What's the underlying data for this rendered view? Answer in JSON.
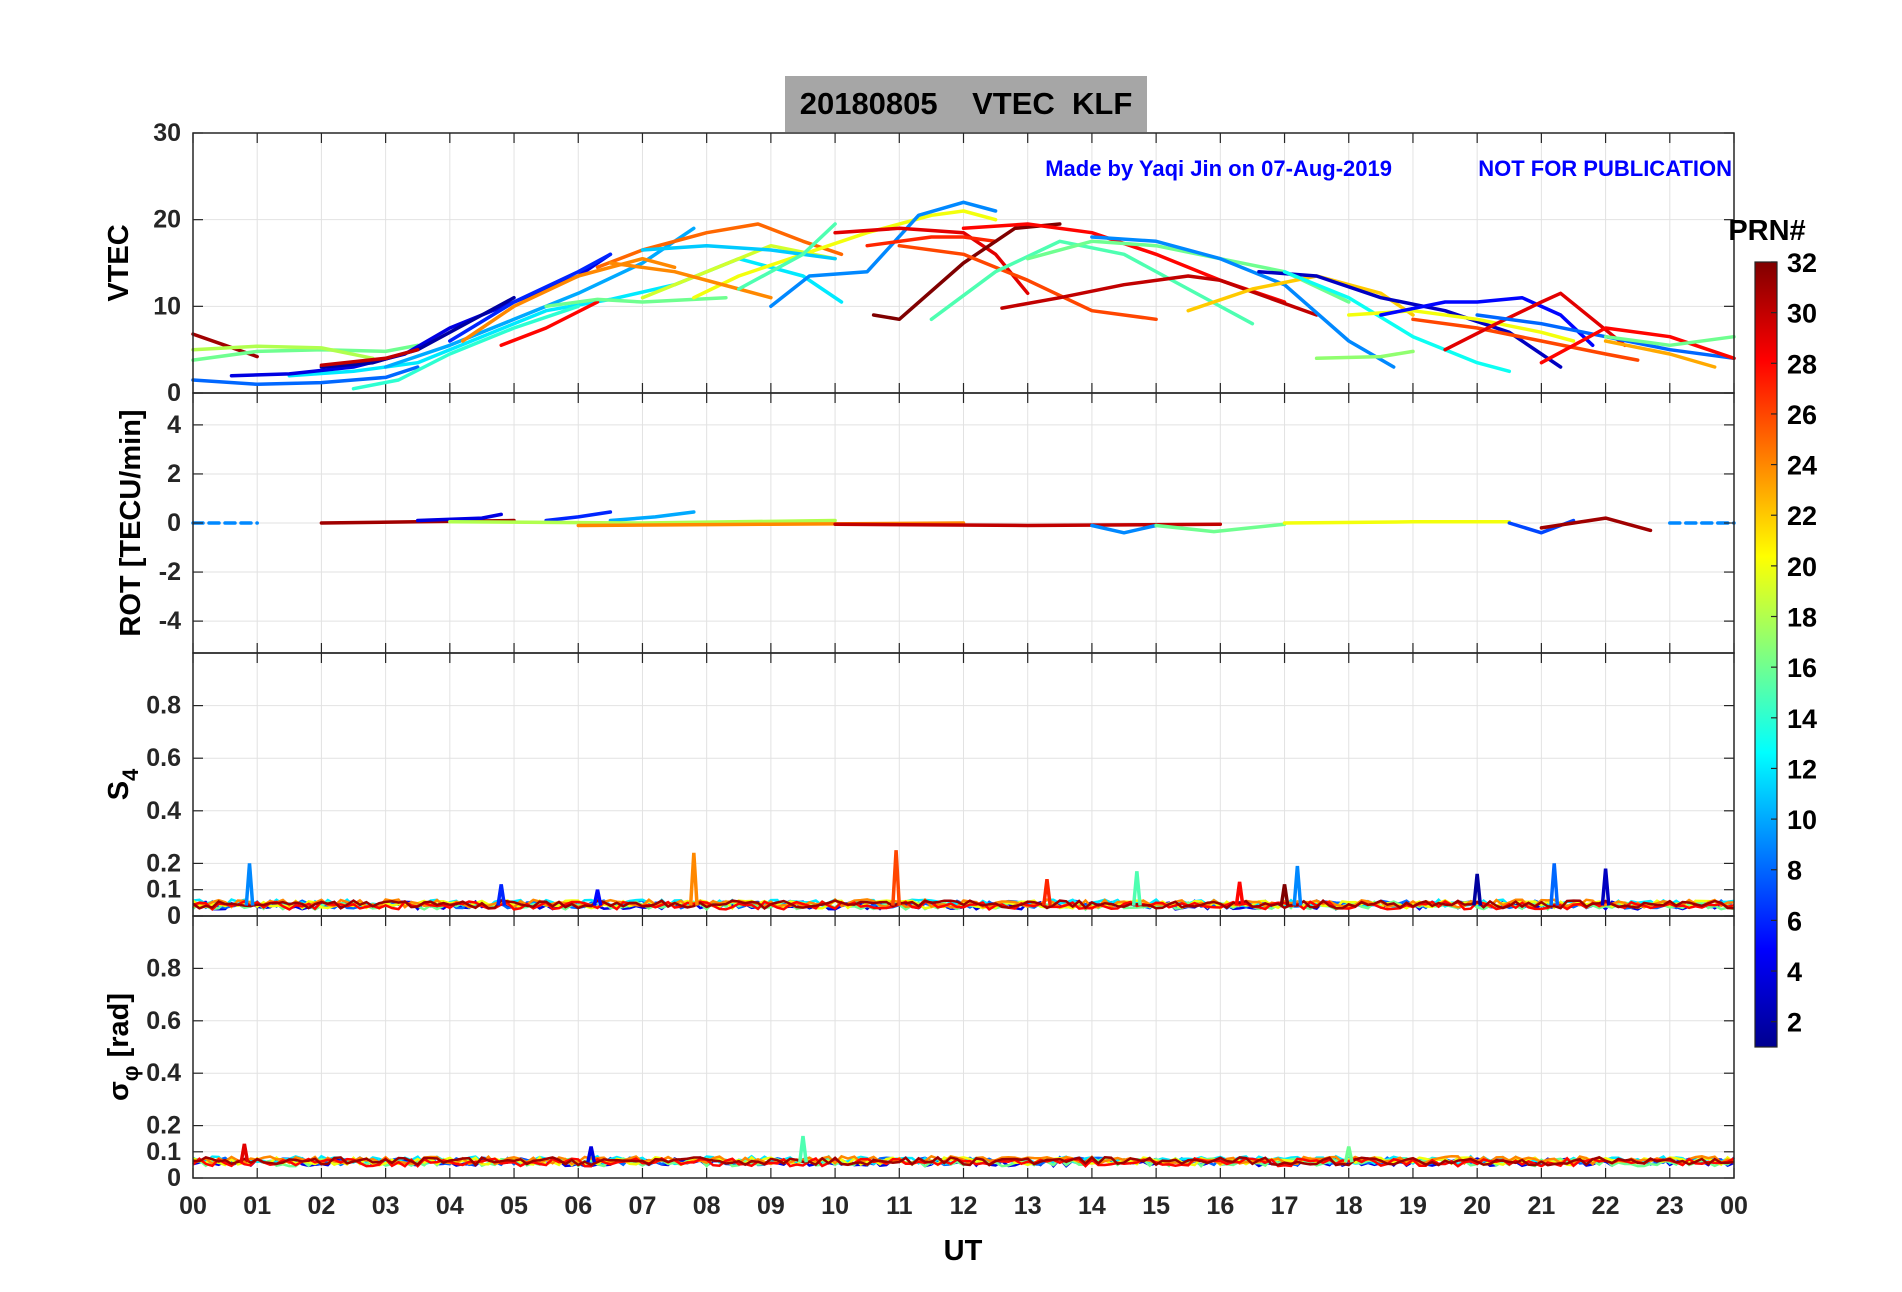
{
  "figure": {
    "title": "20180805    VTEC  KLF",
    "credit": "Made by Yaqi Jin on 07-Aug-2019",
    "notice": "NOT FOR PUBLICATION",
    "xlabel": "UT",
    "colorbar": {
      "label": "PRN#",
      "ticks": [
        "2",
        "4",
        "6",
        "8",
        "10",
        "12",
        "14",
        "16",
        "18",
        "20",
        "22",
        "24",
        "26",
        "28",
        "30",
        "32"
      ]
    },
    "colors": {
      "title_bg": "#a6a6a6",
      "annotation": "#0000ff",
      "grid": "#e2e2e2"
    }
  },
  "chart_data": [
    {
      "type": "line",
      "panel": "VTEC",
      "ylabel": "VTEC",
      "ylim": [
        0,
        30
      ],
      "yticks": [
        0,
        10,
        20,
        30
      ],
      "xlim": [
        0,
        24
      ],
      "xticks": [
        "00",
        "01",
        "02",
        "03",
        "04",
        "05",
        "06",
        "07",
        "08",
        "09",
        "10",
        "11",
        "12",
        "13",
        "14",
        "15",
        "16",
        "17",
        "18",
        "19",
        "20",
        "21",
        "22",
        "23",
        "00"
      ],
      "series": [
        {
          "prn": 31,
          "x": [
            0,
            0.5,
            1.0
          ],
          "y": [
            6.8,
            5.5,
            4.2
          ]
        },
        {
          "prn": 16,
          "x": [
            0,
            1,
            2,
            3,
            3.5
          ],
          "y": [
            3.8,
            4.8,
            5.0,
            4.8,
            5.5
          ]
        },
        {
          "prn": 18,
          "x": [
            0,
            1,
            2,
            2.8
          ],
          "y": [
            5.0,
            5.4,
            5.2,
            4.0
          ]
        },
        {
          "prn": 8,
          "x": [
            0,
            1,
            2,
            3,
            3.5
          ],
          "y": [
            1.5,
            1.0,
            1.2,
            1.8,
            3.0
          ]
        },
        {
          "prn": 12,
          "x": [
            1.5,
            2.5,
            3.5,
            4.5,
            5.5,
            6.5,
            7.5,
            8.5,
            9.5,
            10.1
          ],
          "y": [
            2.0,
            2.5,
            3.5,
            6.5,
            9.5,
            10.8,
            12.5,
            15.5,
            13.5,
            10.5
          ]
        },
        {
          "prn": 4,
          "x": [
            0.6,
            1.5,
            2.5,
            3.3,
            4.0,
            5.0,
            6.0,
            6.5
          ],
          "y": [
            2.0,
            2.2,
            3.0,
            4.5,
            7.5,
            10.5,
            13.5,
            16.0
          ]
        },
        {
          "prn": 2,
          "x": [
            2.0,
            2.8,
            3.5,
            4.5,
            5.0
          ],
          "y": [
            3.0,
            3.5,
            5.0,
            9.0,
            11.0
          ]
        },
        {
          "prn": 30,
          "x": [
            2.0,
            3.0,
            3.5
          ],
          "y": [
            3.2,
            4.0,
            5.0
          ]
        },
        {
          "prn": 14,
          "x": [
            2.5,
            3.2,
            4.0,
            5.0,
            6.0
          ],
          "y": [
            0.5,
            1.5,
            4.5,
            7.5,
            10.0
          ]
        },
        {
          "prn": 10,
          "x": [
            3.0,
            4.0,
            5.0,
            6.0,
            7.0,
            7.8
          ],
          "y": [
            3.0,
            5.5,
            8.5,
            11.5,
            15.0,
            19.0
          ]
        },
        {
          "prn": 6,
          "x": [
            4.0,
            5.0,
            6.0,
            6.5
          ],
          "y": [
            6.0,
            10.5,
            14.0,
            16.0
          ]
        },
        {
          "prn": 24,
          "x": [
            4.2,
            5.0,
            6.0,
            7.0,
            7.5
          ],
          "y": [
            6.0,
            10.0,
            13.5,
            15.5,
            14.5
          ]
        },
        {
          "prn": 28,
          "x": [
            4.8,
            5.5,
            6.3
          ],
          "y": [
            5.5,
            7.5,
            10.5
          ]
        },
        {
          "prn": 16,
          "x": [
            5.5,
            6.3,
            7.0,
            7.8,
            8.3
          ],
          "y": [
            10.0,
            10.8,
            10.5,
            10.8,
            11.0
          ]
        },
        {
          "prn": 25,
          "x": [
            6.3,
            7.0,
            8.0,
            8.8,
            9.5,
            10.1
          ],
          "y": [
            14.5,
            16.5,
            18.5,
            19.5,
            17.5,
            16.0
          ]
        },
        {
          "prn": 19,
          "x": [
            7.0,
            8.0,
            9.0,
            10.0
          ],
          "y": [
            11.0,
            14.0,
            17.0,
            15.5
          ]
        },
        {
          "prn": 20,
          "x": [
            7.8,
            8.5,
            9.5,
            10.5,
            11.5,
            12.0,
            12.5
          ],
          "y": [
            11.0,
            13.5,
            16.0,
            18.5,
            20.5,
            21.0,
            20.0
          ]
        },
        {
          "prn": 24,
          "x": [
            6.5,
            7.5,
            8.5,
            9.0
          ],
          "y": [
            15.0,
            14.0,
            12.0,
            11.0
          ]
        },
        {
          "prn": 11,
          "x": [
            7.0,
            8.0,
            9.0,
            10.0
          ],
          "y": [
            16.5,
            17.0,
            16.5,
            15.5
          ]
        },
        {
          "prn": 15,
          "x": [
            8.5,
            9.5,
            10.0
          ],
          "y": [
            12.0,
            16.0,
            19.5
          ]
        },
        {
          "prn": 9,
          "x": [
            9.0,
            9.6,
            10.5,
            11.3,
            12.0,
            12.5
          ],
          "y": [
            10.0,
            13.5,
            14.0,
            20.5,
            22.0,
            21.0
          ]
        },
        {
          "prn": 29,
          "x": [
            10.0,
            11.0,
            12.0,
            12.5,
            13.0
          ],
          "y": [
            18.5,
            19.0,
            18.5,
            16.0,
            11.5
          ]
        },
        {
          "prn": 27,
          "x": [
            10.5,
            11.5,
            12.0,
            12.5
          ],
          "y": [
            17.0,
            18.0,
            18.0,
            17.5
          ]
        },
        {
          "prn": 32,
          "x": [
            10.6,
            11.0,
            12.0,
            12.8,
            13.5
          ],
          "y": [
            9.0,
            8.5,
            15.0,
            19.0,
            19.5
          ]
        },
        {
          "prn": 26,
          "x": [
            11.0,
            12.0,
            13.0,
            14.0,
            15.0
          ],
          "y": [
            17.0,
            16.0,
            13.0,
            9.5,
            8.5
          ]
        },
        {
          "prn": 15,
          "x": [
            11.5,
            12.5,
            13.5,
            14.5,
            15.5,
            16.5
          ],
          "y": [
            8.5,
            14.0,
            17.5,
            16.0,
            12.0,
            8.0
          ]
        },
        {
          "prn": 28,
          "x": [
            12.0,
            13.0,
            14.0,
            15.0,
            16.0,
            17.0
          ],
          "y": [
            19.0,
            19.5,
            18.5,
            16.0,
            13.0,
            10.5
          ]
        },
        {
          "prn": 30,
          "x": [
            12.6,
            13.5,
            14.5,
            15.5,
            16.0,
            17.5
          ],
          "y": [
            9.8,
            11.0,
            12.5,
            13.5,
            13.0,
            9.0
          ]
        },
        {
          "prn": 16,
          "x": [
            13.0,
            14.0,
            15.0,
            16.0,
            17.0,
            18.0
          ],
          "y": [
            15.5,
            17.5,
            17.0,
            15.5,
            14.0,
            10.5
          ]
        },
        {
          "prn": 9,
          "x": [
            14.0,
            15.0,
            16.0,
            17.0,
            18.0,
            18.7
          ],
          "y": [
            18.0,
            17.5,
            15.5,
            12.5,
            6.0,
            3.0
          ]
        },
        {
          "prn": 22,
          "x": [
            15.5,
            16.5,
            17.5,
            18.5,
            19.0
          ],
          "y": [
            9.5,
            12.0,
            13.5,
            11.5,
            9.0
          ]
        },
        {
          "prn": 3,
          "x": [
            16.6,
            17.5,
            18.5,
            19.5,
            20.5,
            21.3
          ],
          "y": [
            14.0,
            13.5,
            11.0,
            9.5,
            7.0,
            3.0
          ]
        },
        {
          "prn": 13,
          "x": [
            17.0,
            18.0,
            19.0,
            20.0,
            20.5
          ],
          "y": [
            14.0,
            11.0,
            6.5,
            3.5,
            2.5
          ]
        },
        {
          "prn": 17,
          "x": [
            17.5,
            18.5,
            19.0
          ],
          "y": [
            4.0,
            4.2,
            4.8
          ]
        },
        {
          "prn": 20,
          "x": [
            18.0,
            19.0,
            20.0,
            21.0,
            21.5
          ],
          "y": [
            9.0,
            9.5,
            8.5,
            7.0,
            6.0
          ]
        },
        {
          "prn": 5,
          "x": [
            18.5,
            19.5,
            20.0,
            20.7,
            21.3,
            21.8
          ],
          "y": [
            9.0,
            10.5,
            10.5,
            11.0,
            9.0,
            5.5
          ]
        },
        {
          "prn": 26,
          "x": [
            19.0,
            20.0,
            21.0,
            22.0,
            22.5
          ],
          "y": [
            8.5,
            7.5,
            6.0,
            4.5,
            3.8
          ]
        },
        {
          "prn": 29,
          "x": [
            19.5,
            20.3,
            21.0,
            21.3,
            21.8,
            22.3
          ],
          "y": [
            5.0,
            8.0,
            10.5,
            11.5,
            8.5,
            5.5
          ]
        },
        {
          "prn": 8,
          "x": [
            20.0,
            21.0,
            22.0,
            23.0,
            24.0
          ],
          "y": [
            9.0,
            8.0,
            6.5,
            5.0,
            4.0
          ]
        },
        {
          "prn": 28,
          "x": [
            21.0,
            22.0,
            23.0,
            24.0
          ],
          "y": [
            3.5,
            7.5,
            6.5,
            4.0
          ]
        },
        {
          "prn": 16,
          "x": [
            22.0,
            23.0,
            24.0
          ],
          "y": [
            6.5,
            5.5,
            6.5
          ]
        },
        {
          "prn": 23,
          "x": [
            22.0,
            23.0,
            23.7
          ],
          "y": [
            6.0,
            4.5,
            3.0
          ]
        }
      ]
    },
    {
      "type": "line",
      "panel": "ROT",
      "ylabel": "ROT [TECU/min]",
      "ylim": [
        -5.3,
        5.3
      ],
      "yticks": [
        -4,
        -2,
        0,
        2,
        4
      ],
      "xlim": [
        0,
        24
      ],
      "series": [
        {
          "prn": 9,
          "x": [
            0.0,
            1.0
          ],
          "y": [
            0.0,
            0.0
          ],
          "note": "dashed segment"
        },
        {
          "prn": 31,
          "x": [
            2.0,
            3.5,
            5.0
          ],
          "y": [
            0.0,
            0.05,
            0.1
          ]
        },
        {
          "prn": 4,
          "x": [
            3.5,
            4.5,
            4.8
          ],
          "y": [
            0.1,
            0.2,
            0.35
          ]
        },
        {
          "prn": 6,
          "x": [
            5.5,
            6.0,
            6.5
          ],
          "y": [
            0.1,
            0.25,
            0.45
          ]
        },
        {
          "prn": 10,
          "x": [
            6.5,
            7.2,
            7.8
          ],
          "y": [
            0.1,
            0.25,
            0.45
          ]
        },
        {
          "prn": 18,
          "x": [
            4.0,
            7.0,
            10.0
          ],
          "y": [
            0.05,
            0.0,
            0.1
          ]
        },
        {
          "prn": 24,
          "x": [
            6.0,
            9.0,
            12.0
          ],
          "y": [
            -0.1,
            -0.05,
            0.0
          ]
        },
        {
          "prn": 30,
          "x": [
            10.0,
            13.0,
            16.0
          ],
          "y": [
            -0.05,
            -0.1,
            -0.05
          ]
        },
        {
          "prn": 9,
          "x": [
            14.0,
            14.5,
            15.0
          ],
          "y": [
            -0.1,
            -0.4,
            -0.1
          ]
        },
        {
          "prn": 16,
          "x": [
            15.0,
            15.9,
            17.0
          ],
          "y": [
            -0.1,
            -0.35,
            -0.05
          ]
        },
        {
          "prn": 20,
          "x": [
            17.0,
            19.0,
            20.5
          ],
          "y": [
            0.0,
            0.05,
            0.05
          ]
        },
        {
          "prn": 7,
          "x": [
            20.5,
            21.0,
            21.5
          ],
          "y": [
            0.0,
            -0.4,
            0.1
          ]
        },
        {
          "prn": 31,
          "x": [
            21.0,
            22.0,
            22.7
          ],
          "y": [
            -0.2,
            0.2,
            -0.3
          ]
        },
        {
          "prn": 9,
          "x": [
            23.0,
            24.0
          ],
          "y": [
            0.0,
            0.0
          ],
          "note": "dashed segment"
        }
      ]
    },
    {
      "type": "line",
      "panel": "S4",
      "ylabel": "S",
      "ylabel_subscript": "4",
      "ylim": [
        0,
        1
      ],
      "yticks": [
        0,
        0.1,
        0.2,
        0.4,
        0.6,
        0.8
      ],
      "xlim": [
        0,
        24
      ],
      "baseline": 0.04,
      "spikes": [
        {
          "prn": 9,
          "x": 0.88,
          "y": 0.2
        },
        {
          "prn": 6,
          "x": 4.8,
          "y": 0.12
        },
        {
          "prn": 5,
          "x": 6.3,
          "y": 0.1
        },
        {
          "prn": 24,
          "x": 7.8,
          "y": 0.24
        },
        {
          "prn": 26,
          "x": 10.95,
          "y": 0.25
        },
        {
          "prn": 27,
          "x": 13.3,
          "y": 0.14
        },
        {
          "prn": 15,
          "x": 14.7,
          "y": 0.17
        },
        {
          "prn": 28,
          "x": 16.3,
          "y": 0.13
        },
        {
          "prn": 32,
          "x": 17.0,
          "y": 0.12
        },
        {
          "prn": 9,
          "x": 17.2,
          "y": 0.19
        },
        {
          "prn": 2,
          "x": 20.0,
          "y": 0.16
        },
        {
          "prn": 8,
          "x": 21.2,
          "y": 0.2
        },
        {
          "prn": 3,
          "x": 22.0,
          "y": 0.18
        }
      ]
    },
    {
      "type": "line",
      "panel": "sigma_phi",
      "ylabel": "σ",
      "ylabel_subscript": "φ",
      "ylabel_suffix": " [rad]",
      "ylim": [
        0,
        1
      ],
      "yticks": [
        0,
        0.1,
        0.2,
        0.4,
        0.6,
        0.8
      ],
      "xlim": [
        0,
        24
      ],
      "baseline": 0.06,
      "spikes": [
        {
          "prn": 29,
          "x": 0.8,
          "y": 0.13
        },
        {
          "prn": 4,
          "x": 6.2,
          "y": 0.12
        },
        {
          "prn": 15,
          "x": 9.5,
          "y": 0.16
        },
        {
          "prn": 16,
          "x": 18.0,
          "y": 0.12
        }
      ]
    }
  ]
}
